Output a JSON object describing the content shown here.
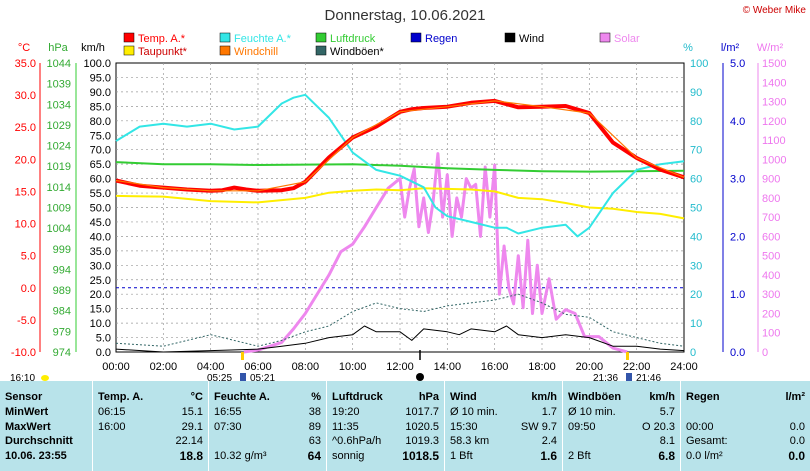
{
  "header": {
    "title": "Donnerstag, 10.06.2021",
    "copyright": "© Weber Mike"
  },
  "legend": [
    {
      "name": "Temp. A.*",
      "color": "#ff0000",
      "row": 0,
      "col": 0
    },
    {
      "name": "Feuchte A.*",
      "color": "#33e6e6",
      "row": 0,
      "col": 1
    },
    {
      "name": "Luftdruck",
      "color": "#33cc33",
      "row": 0,
      "col": 2
    },
    {
      "name": "Regen",
      "color": "#0000cc",
      "row": 0,
      "col": 3
    },
    {
      "name": "Wind",
      "color": "#000000",
      "row": 0,
      "col": 4
    },
    {
      "name": "Solar",
      "color": "#ee88ee",
      "row": 0,
      "col": 5
    },
    {
      "name": "Taupunkt*",
      "color": "#ffee00",
      "row": 1,
      "col": 0
    },
    {
      "name": "Windchill",
      "color": "#ff7700",
      "row": 1,
      "col": 1
    },
    {
      "name": "Windböen*",
      "color": "#336666",
      "row": 1,
      "col": 2
    }
  ],
  "axis_units": {
    "temp": "°C",
    "pressure": "hPa",
    "wind": "km/h",
    "humidity": "%",
    "rain": "l/m²",
    "solar": "W/m²"
  },
  "axis_ticks": {
    "temp": [
      "35.0",
      "30.0",
      "25.0",
      "20.0",
      "15.0",
      "10.0",
      "5.0",
      "0.0",
      "-5.0",
      "-10.0"
    ],
    "pressure": [
      "1044",
      "1039",
      "1034",
      "1029",
      "1024",
      "1019",
      "1014",
      "1009",
      "1004",
      "999",
      "994",
      "989",
      "984",
      "979",
      "974"
    ],
    "wind": [
      "100.0",
      "95.0",
      "90.0",
      "85.0",
      "80.0",
      "75.0",
      "70.0",
      "65.0",
      "60.0",
      "55.0",
      "50.0",
      "45.0",
      "40.0",
      "35.0",
      "30.0",
      "25.0",
      "20.0",
      "15.0",
      "10.0",
      "5.0",
      "0.0"
    ],
    "humidity": [
      "100",
      "90",
      "80",
      "70",
      "60",
      "50",
      "40",
      "30",
      "20",
      "10",
      "0"
    ],
    "rain": [
      "5.0",
      "4.0",
      "3.0",
      "2.0",
      "1.0",
      "0.0"
    ],
    "solar": [
      "1500",
      "1400",
      "1300",
      "1200",
      "1100",
      "1000",
      "900",
      "800",
      "700",
      "600",
      "500",
      "400",
      "300",
      "200",
      "100",
      "0"
    ],
    "time": [
      "00:00",
      "02:00",
      "04:00",
      "06:00",
      "08:00",
      "10:00",
      "12:00",
      "14:00",
      "16:00",
      "18:00",
      "20:00",
      "22:00",
      "24:00"
    ]
  },
  "sun_markers": {
    "left_time": "16:10",
    "sunrise_civil": "05:25",
    "sunrise": "05:21",
    "sunset": "21:36",
    "sunset_civil": "21:46"
  },
  "chart_data": {
    "type": "line",
    "x_unit": "hours",
    "xlim": [
      0,
      24
    ],
    "ylim": {
      "temp": [
        -10,
        35
      ],
      "pressure": [
        974,
        1044
      ],
      "humidity": [
        0,
        100
      ],
      "rain": [
        0,
        5
      ],
      "wind": [
        0,
        100
      ],
      "solar": [
        0,
        1500
      ]
    },
    "series": [
      {
        "name": "Temp. A.*",
        "axis": "temp",
        "color": "#ff0000",
        "x": [
          0,
          1,
          2,
          3,
          4,
          4.5,
          5,
          5.5,
          6,
          7,
          7.5,
          8,
          9,
          10,
          11,
          12,
          12.5,
          13,
          14,
          15,
          16,
          17,
          18,
          19,
          20,
          21,
          22,
          23,
          24
        ],
        "y": [
          16.7,
          15.9,
          15.6,
          15.3,
          15.1,
          15.2,
          15.6,
          15.3,
          15.1,
          15.2,
          15.5,
          16.5,
          20.3,
          23.4,
          25.1,
          27.4,
          27.8,
          28,
          28.2,
          28.8,
          29.1,
          28.1,
          28.2,
          28.3,
          27.2,
          22.6,
          20.2,
          18.4,
          17.2
        ]
      },
      {
        "name": "Windchill",
        "axis": "temp",
        "color": "#ff7700",
        "x": [
          0,
          2,
          4,
          6,
          8,
          10,
          12,
          14,
          16,
          18,
          20,
          22,
          24
        ],
        "y": [
          16.7,
          15.6,
          15.1,
          15.1,
          16.5,
          23.4,
          27.4,
          28.2,
          29.1,
          28.2,
          27.2,
          20.2,
          17.2
        ]
      },
      {
        "name": "Taupunkt*",
        "axis": "temp",
        "color": "#ffee00",
        "x": [
          0,
          2,
          4,
          6,
          8,
          9,
          10,
          11,
          12,
          13,
          14,
          15,
          16,
          17,
          18,
          19,
          20,
          21,
          22,
          23,
          24
        ],
        "y": [
          14.3,
          14.2,
          13.5,
          13.3,
          14,
          14.8,
          15.1,
          15.3,
          15.2,
          15.5,
          15.4,
          15.3,
          15,
          14,
          13.8,
          13.2,
          12.5,
          12.3,
          11.8,
          11.5,
          10.8
        ]
      },
      {
        "name": "Feuchte A.*",
        "axis": "humidity",
        "color": "#33e6e6",
        "x": [
          0,
          1,
          2,
          3,
          4,
          5,
          6,
          7,
          7.5,
          8,
          9,
          10,
          11,
          12,
          13,
          13.5,
          14,
          15,
          16,
          16.5,
          17,
          18,
          19,
          19.5,
          20,
          21,
          22,
          23,
          24
        ],
        "y": [
          73,
          78,
          79,
          78,
          79,
          77,
          78,
          86,
          88,
          89,
          81,
          69,
          63,
          61,
          57,
          50,
          47,
          45,
          43,
          43,
          41,
          43,
          44,
          40,
          43,
          55,
          63,
          65,
          66
        ]
      },
      {
        "name": "Luftdruck",
        "axis": "pressure",
        "color": "#33cc33",
        "x": [
          0,
          2,
          4,
          6,
          8,
          10,
          12,
          14,
          16,
          18,
          20,
          22,
          24
        ],
        "y": [
          1020,
          1019.5,
          1019.5,
          1019.3,
          1019.4,
          1019.5,
          1019.1,
          1018.5,
          1018.1,
          1017.8,
          1017.7,
          1017.8,
          1017.9
        ]
      },
      {
        "name": "Wind",
        "axis": "wind",
        "color": "#000000",
        "x": [
          0,
          2,
          4,
          6,
          7,
          8,
          9,
          10,
          10.5,
          11,
          12,
          12.5,
          13,
          14,
          14.5,
          15,
          16,
          16.5,
          17,
          18,
          19,
          20,
          21,
          22,
          23,
          24
        ],
        "y": [
          1,
          0,
          0.5,
          1,
          2,
          3,
          5,
          6,
          9,
          7,
          7,
          4,
          8,
          7,
          6,
          8,
          7,
          9,
          6,
          5,
          6,
          5,
          2,
          2,
          1,
          0.5
        ]
      },
      {
        "name": "Windböen*",
        "axis": "wind",
        "color": "#336666",
        "x": [
          0,
          2,
          4,
          6,
          7,
          8,
          9,
          10,
          11,
          12,
          13,
          14,
          15,
          16,
          17,
          18,
          19,
          20,
          21,
          22,
          23,
          24
        ],
        "y": [
          3,
          2,
          6,
          2,
          4,
          7,
          9,
          14,
          17,
          15,
          14,
          16,
          17,
          18,
          20,
          17,
          13,
          12,
          7,
          5,
          3,
          2
        ]
      },
      {
        "name": "Solar",
        "axis": "solar",
        "color": "#ee88ee",
        "x": [
          5.4,
          6,
          7,
          7.5,
          8,
          9,
          9.5,
          10,
          10.5,
          11,
          11.5,
          12,
          12.2,
          12.4,
          12.6,
          12.8,
          13,
          13.2,
          13.4,
          13.6,
          13.8,
          14,
          14.2,
          14.4,
          14.6,
          14.8,
          15,
          15.2,
          15.4,
          15.6,
          15.8,
          16,
          16.2,
          16.4,
          16.6,
          16.8,
          17,
          17.2,
          17.4,
          17.6,
          17.8,
          18,
          18.3,
          18.6,
          19,
          19.4,
          19.8,
          20.4,
          21,
          21.6
        ],
        "y": [
          0,
          10,
          50,
          120,
          200,
          400,
          520,
          560,
          650,
          750,
          850,
          900,
          700,
          850,
          950,
          650,
          800,
          620,
          780,
          1030,
          700,
          920,
          600,
          800,
          700,
          900,
          850,
          870,
          600,
          960,
          700,
          970,
          300,
          550,
          330,
          250,
          500,
          230,
          580,
          200,
          450,
          200,
          380,
          170,
          220,
          200,
          80,
          80,
          20,
          0
        ]
      }
    ]
  },
  "stats": {
    "columns": [
      {
        "key": "sensor",
        "header": "Sensor",
        "unit": ""
      },
      {
        "key": "temp",
        "header": "Temp. A.",
        "unit": "°C"
      },
      {
        "key": "humidity",
        "header": "Feuchte A.",
        "unit": "%"
      },
      {
        "key": "pressure",
        "header": "Luftdruck",
        "unit": "hPa"
      },
      {
        "key": "wind",
        "header": "Wind",
        "unit": "km/h"
      },
      {
        "key": "gust",
        "header": "Windböen",
        "unit": "km/h"
      },
      {
        "key": "rain",
        "header": "Regen",
        "unit": "l/m²"
      }
    ],
    "rows": [
      {
        "label": "MinWert",
        "temp": [
          "06:15",
          "15.1"
        ],
        "humidity": [
          "16:55",
          "38"
        ],
        "pressure": [
          "19:20",
          "1017.7"
        ],
        "wind": [
          "Ø 10 min.",
          "1.7"
        ],
        "gust": [
          "Ø 10 min.",
          "5.7"
        ],
        "rain": [
          "",
          ""
        ]
      },
      {
        "label": "MaxWert",
        "temp": [
          "16:00",
          "29.1"
        ],
        "humidity": [
          "07:30",
          "89"
        ],
        "pressure": [
          "11:35",
          "1020.5"
        ],
        "wind": [
          "15:30",
          "SW 9.7"
        ],
        "gust": [
          "09:50",
          "O 20.3"
        ],
        "rain": [
          "00:00",
          "0.0"
        ]
      },
      {
        "label": "Durchschnitt",
        "temp": [
          "",
          "22.14"
        ],
        "humidity": [
          "",
          "63"
        ],
        "pressure": [
          "^0.6hPa/h",
          "1019.3"
        ],
        "wind": [
          "58.3 km",
          "2.4"
        ],
        "gust": [
          "",
          "8.1"
        ],
        "rain": [
          "Gesamt:",
          "0.0"
        ]
      },
      {
        "label": "10.06. 23:55",
        "temp": [
          "",
          "18.8"
        ],
        "humidity": [
          "10.32 g/m³",
          "64"
        ],
        "pressure": [
          "sonnig",
          "1018.5"
        ],
        "wind": [
          "1 Bft",
          "1.6"
        ],
        "gust": [
          "2 Bft",
          "6.8"
        ],
        "rain": [
          "0.0 l/m²",
          "0.0"
        ]
      }
    ]
  }
}
